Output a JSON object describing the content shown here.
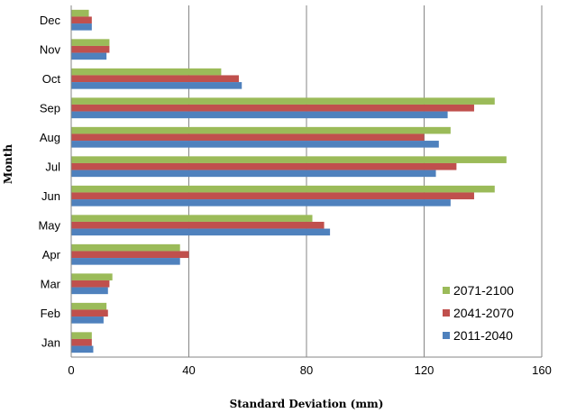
{
  "chart_data": {
    "type": "bar",
    "orientation": "horizontal",
    "title": "",
    "xlabel": "Standard Deviation (mm)",
    "ylabel": "Month",
    "xlim": [
      0,
      160
    ],
    "xticks": [
      0,
      40,
      80,
      120,
      160
    ],
    "grid": "vertical major gridlines",
    "legend_position": "bottom-right",
    "categories": [
      "Jan",
      "Feb",
      "Mar",
      "Apr",
      "May",
      "Jun",
      "Jul",
      "Aug",
      "Sep",
      "Oct",
      "Nov",
      "Dec"
    ],
    "series": [
      {
        "name": "2071-2100",
        "color": "#9bbb59",
        "values": [
          7,
          12,
          14,
          37,
          82,
          144,
          148,
          129,
          144,
          51,
          13,
          6
        ]
      },
      {
        "name": "2041-2070",
        "color": "#c0504d",
        "values": [
          7,
          12.5,
          13,
          40,
          86,
          137,
          131,
          120,
          137,
          57,
          13,
          7
        ]
      },
      {
        "name": "2011-2040",
        "color": "#4f81bd",
        "values": [
          7.5,
          11,
          12.5,
          37,
          88,
          129,
          124,
          125,
          128,
          58,
          12,
          7
        ]
      }
    ]
  }
}
